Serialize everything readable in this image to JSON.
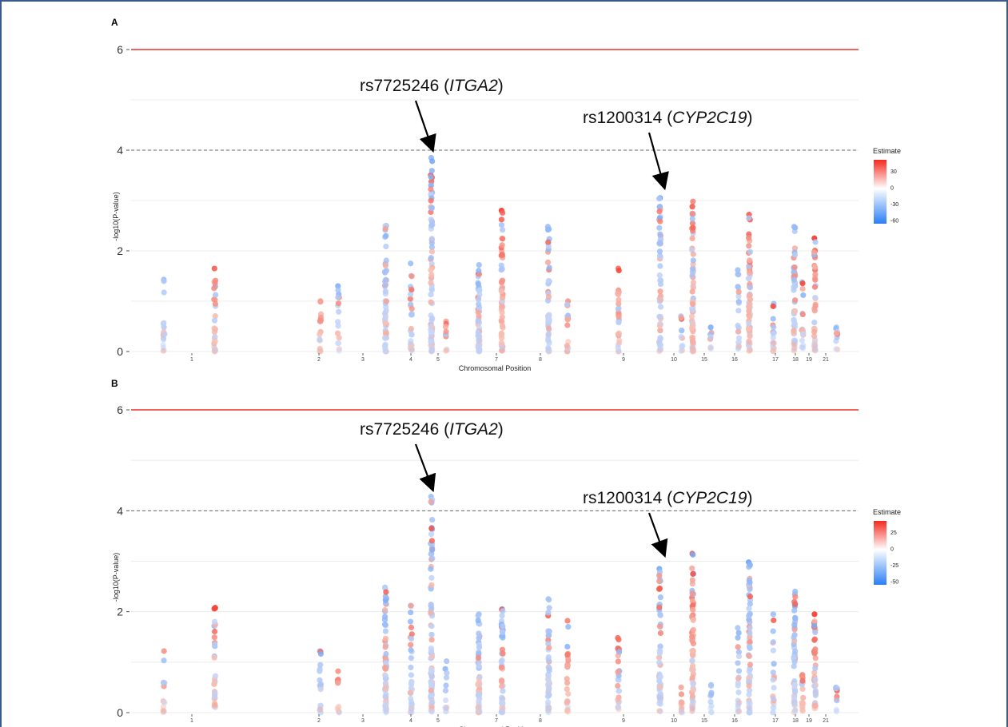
{
  "colors": {
    "threshold_solid": "#e8302a",
    "threshold_dashed": "#666666",
    "positive": "#f42a1e",
    "neutral": "#ffffff",
    "negative": "#2b7ef6",
    "frame_border": "#3b5b8c"
  },
  "chart_data": [
    {
      "panel": "A",
      "type": "scatter",
      "xlabel": "Chromosomal Position",
      "ylabel": "-log10(P-value)",
      "ylim": [
        0,
        6
      ],
      "yticks": [
        0,
        2,
        4,
        6
      ],
      "hlines": [
        {
          "y": 6,
          "style": "solid"
        },
        {
          "y": 4,
          "style": "dashed"
        }
      ],
      "chromosomes": [
        "1",
        "2",
        "3",
        "4",
        "5",
        "7",
        "8",
        "9",
        "10",
        "15",
        "16",
        "17",
        "18",
        "19",
        "21"
      ],
      "legend": {
        "title": "Estimate",
        "ticks": [
          "30",
          "0",
          "-30",
          "-60"
        ],
        "placement": "right"
      },
      "annotations": [
        {
          "label": "rs7725246 (",
          "gene": "ITGA2",
          "suffix": ")"
        },
        {
          "label": "rs1200314 (",
          "gene": "CYP2C19",
          "suffix": ")"
        }
      ],
      "columns": [
        {
          "x": 0.045,
          "top": 1.43,
          "n": 16,
          "top_est": -20
        },
        {
          "x": 0.115,
          "top": 1.65,
          "n": 30,
          "top_est": 30
        },
        {
          "x": 0.26,
          "top": 1.0,
          "n": 18,
          "top_est": 15
        },
        {
          "x": 0.285,
          "top": 1.3,
          "n": 16,
          "top_est": -30
        },
        {
          "x": 0.35,
          "top": 2.5,
          "n": 60,
          "top_est": -20
        },
        {
          "x": 0.385,
          "top": 1.75,
          "n": 32,
          "top_est": -20
        },
        {
          "x": 0.413,
          "top": 3.85,
          "n": 80,
          "top_est": -25
        },
        {
          "x": 0.433,
          "top": 0.6,
          "n": 10,
          "top_est": 10
        },
        {
          "x": 0.478,
          "top": 1.72,
          "n": 60,
          "top_est": -20
        },
        {
          "x": 0.51,
          "top": 2.8,
          "n": 60,
          "top_est": 40
        },
        {
          "x": 0.574,
          "top": 2.48,
          "n": 50,
          "top_est": -20
        },
        {
          "x": 0.6,
          "top": 1.0,
          "n": 20,
          "top_est": 15
        },
        {
          "x": 0.67,
          "top": 1.65,
          "n": 30,
          "top_est": 25
        },
        {
          "x": 0.727,
          "top": 3.05,
          "n": 60,
          "top_est": -40
        },
        {
          "x": 0.757,
          "top": 0.7,
          "n": 14,
          "top_est": -15
        },
        {
          "x": 0.772,
          "top": 2.98,
          "n": 70,
          "top_est": 20
        },
        {
          "x": 0.797,
          "top": 0.48,
          "n": 10,
          "top_est": -15
        },
        {
          "x": 0.835,
          "top": 1.62,
          "n": 22,
          "top_est": -20
        },
        {
          "x": 0.85,
          "top": 2.72,
          "n": 70,
          "top_est": 30
        },
        {
          "x": 0.883,
          "top": 0.95,
          "n": 20,
          "top_est": -20
        },
        {
          "x": 0.912,
          "top": 2.48,
          "n": 50,
          "top_est": -20
        },
        {
          "x": 0.923,
          "top": 1.38,
          "n": 18,
          "top_est": -15
        },
        {
          "x": 0.94,
          "top": 2.25,
          "n": 40,
          "top_est": 40
        },
        {
          "x": 0.97,
          "top": 0.48,
          "n": 10,
          "top_est": -15
        }
      ]
    },
    {
      "panel": "B",
      "type": "scatter",
      "xlabel": "Chromosomal Position",
      "ylabel": "-log10(P-value)",
      "ylim": [
        0,
        6
      ],
      "yticks": [
        0,
        2,
        4,
        6
      ],
      "hlines": [
        {
          "y": 6,
          "style": "solid"
        },
        {
          "y": 4,
          "style": "dashed"
        }
      ],
      "chromosomes": [
        "1",
        "2",
        "3",
        "4",
        "5",
        "7",
        "8",
        "9",
        "10",
        "15",
        "16",
        "17",
        "18",
        "19",
        "21"
      ],
      "legend": {
        "title": "Estimate",
        "ticks": [
          "25",
          "0",
          "-25",
          "-50"
        ],
        "placement": "right"
      },
      "annotations": [
        {
          "label": "rs7725246 (",
          "gene": "ITGA2",
          "suffix": ")"
        },
        {
          "label": "rs1200314 (",
          "gene": "CYP2C19",
          "suffix": ")"
        }
      ],
      "columns": [
        {
          "x": 0.045,
          "top": 1.22,
          "n": 14,
          "top_est": 15
        },
        {
          "x": 0.115,
          "top": 2.08,
          "n": 30,
          "top_est": 30
        },
        {
          "x": 0.26,
          "top": 1.22,
          "n": 20,
          "top_est": -20
        },
        {
          "x": 0.285,
          "top": 0.82,
          "n": 14,
          "top_est": 15
        },
        {
          "x": 0.35,
          "top": 2.48,
          "n": 70,
          "top_est": -15
        },
        {
          "x": 0.385,
          "top": 2.12,
          "n": 36,
          "top_est": -20
        },
        {
          "x": 0.413,
          "top": 4.28,
          "n": 90,
          "top_est": -20
        },
        {
          "x": 0.433,
          "top": 1.02,
          "n": 12,
          "top_est": -15
        },
        {
          "x": 0.478,
          "top": 1.95,
          "n": 60,
          "top_est": -20
        },
        {
          "x": 0.51,
          "top": 2.05,
          "n": 60,
          "top_est": -40
        },
        {
          "x": 0.574,
          "top": 2.25,
          "n": 50,
          "top_est": -20
        },
        {
          "x": 0.6,
          "top": 1.82,
          "n": 24,
          "top_est": 20
        },
        {
          "x": 0.67,
          "top": 1.48,
          "n": 30,
          "top_est": 25
        },
        {
          "x": 0.727,
          "top": 2.85,
          "n": 60,
          "top_est": -35
        },
        {
          "x": 0.757,
          "top": 0.5,
          "n": 12,
          "top_est": 10
        },
        {
          "x": 0.772,
          "top": 3.15,
          "n": 70,
          "top_est": 30
        },
        {
          "x": 0.797,
          "top": 0.55,
          "n": 10,
          "top_est": -15
        },
        {
          "x": 0.835,
          "top": 1.68,
          "n": 22,
          "top_est": -15
        },
        {
          "x": 0.85,
          "top": 2.98,
          "n": 70,
          "top_est": -40
        },
        {
          "x": 0.883,
          "top": 1.95,
          "n": 22,
          "top_est": -20
        },
        {
          "x": 0.912,
          "top": 2.4,
          "n": 50,
          "top_est": -20
        },
        {
          "x": 0.923,
          "top": 0.75,
          "n": 18,
          "top_est": 15
        },
        {
          "x": 0.94,
          "top": 1.95,
          "n": 40,
          "top_est": 40
        },
        {
          "x": 0.97,
          "top": 0.5,
          "n": 10,
          "top_est": -15
        }
      ]
    }
  ]
}
